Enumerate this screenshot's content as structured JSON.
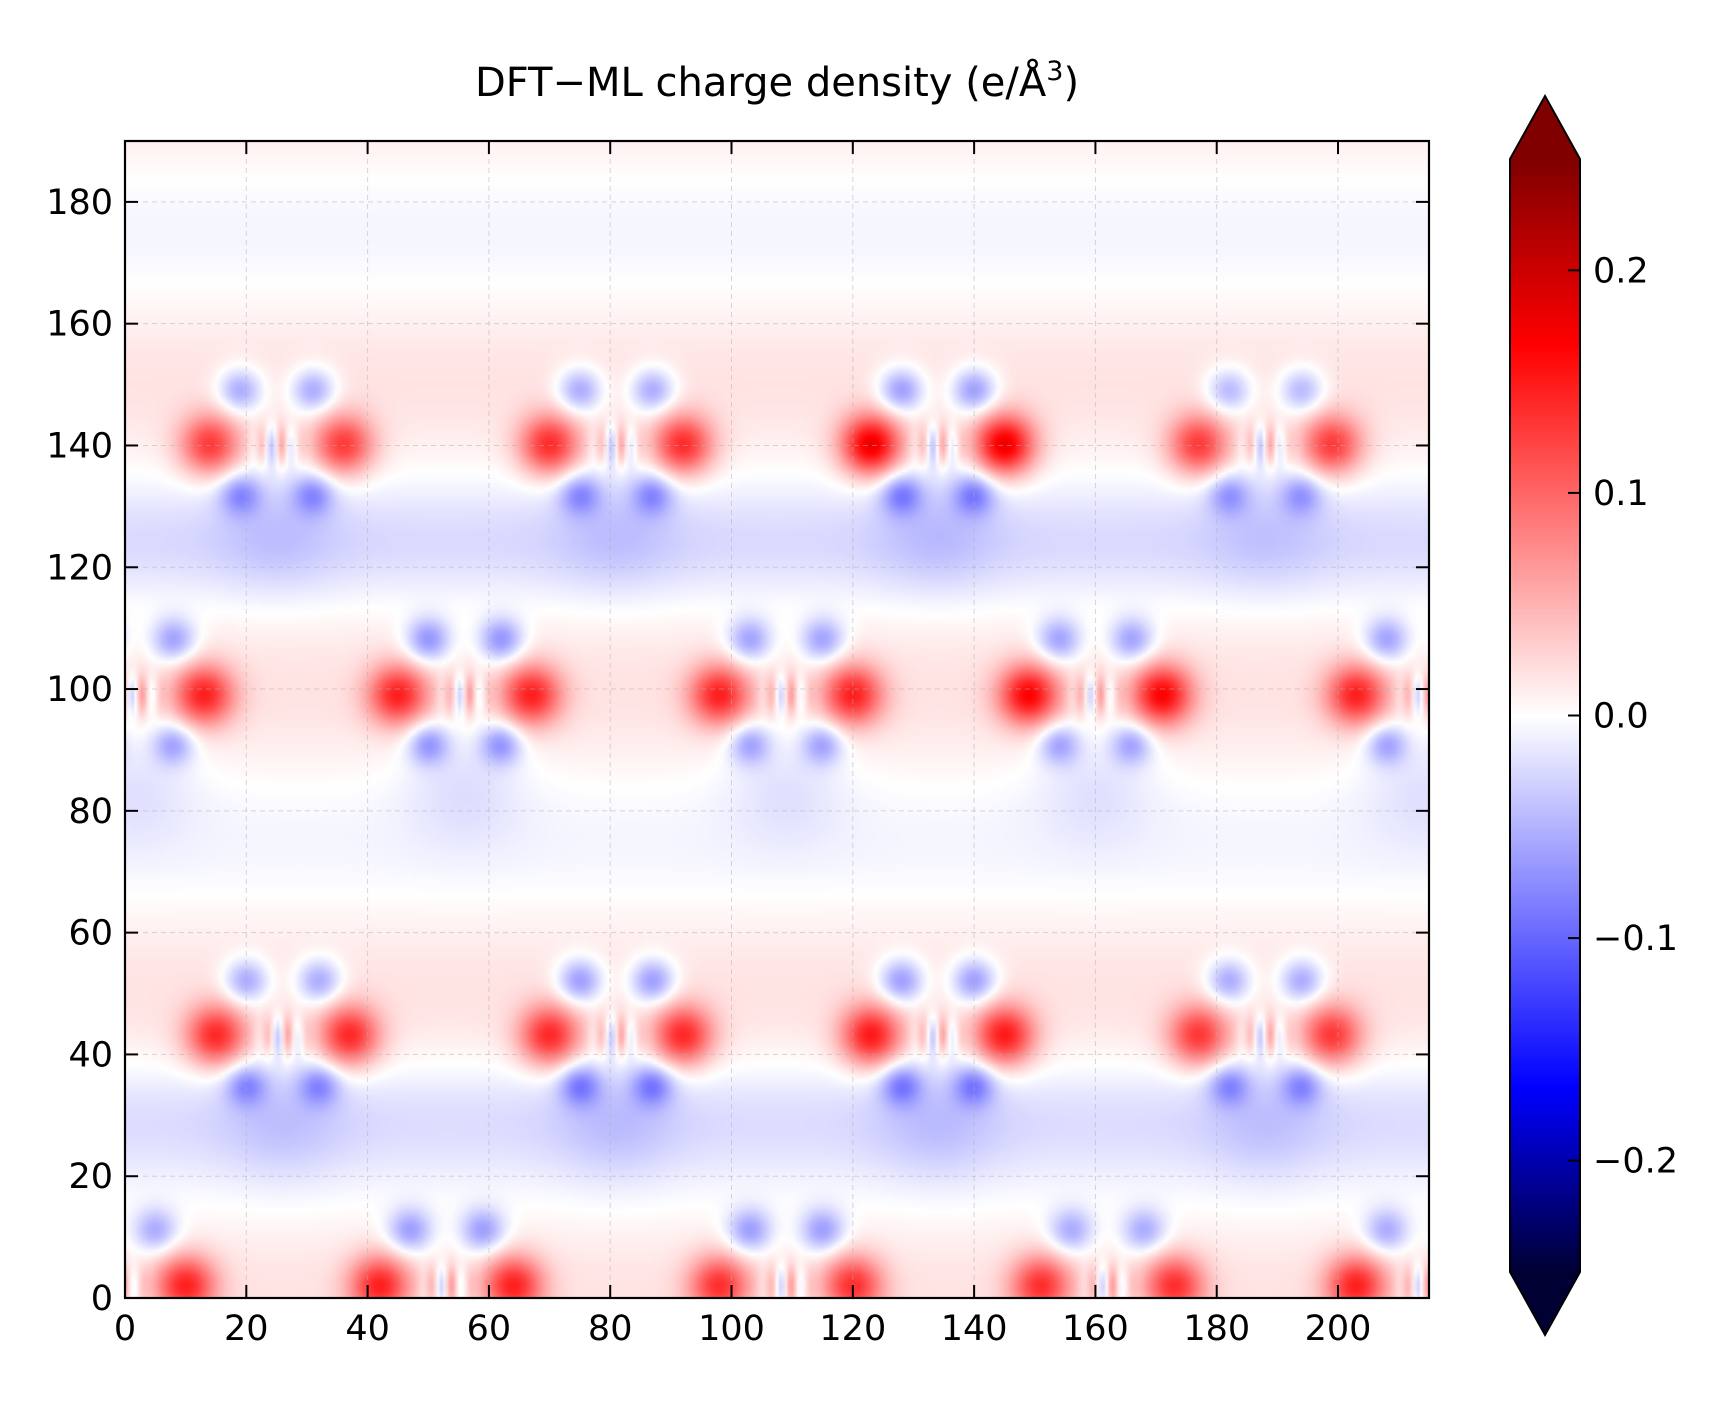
{
  "chart_data": {
    "type": "heatmap",
    "title": "DFT−ML charge density (e/Å³)",
    "title_parts": {
      "main": "DFT−ML charge density (e/Å",
      "superscript": "3",
      "close": ")"
    },
    "xlabel": "",
    "ylabel": "",
    "xlim": [
      0,
      215
    ],
    "ylim": [
      0,
      190
    ],
    "x_ticks": [
      0,
      20,
      40,
      60,
      80,
      100,
      120,
      140,
      160,
      180,
      200
    ],
    "y_ticks": [
      0,
      20,
      40,
      60,
      80,
      100,
      120,
      140,
      160,
      180
    ],
    "grid": true,
    "colormap": "seismic",
    "colormap_stops": [
      {
        "v": -0.25,
        "color": "#000033"
      },
      {
        "v": -0.1667,
        "color": "#0000ff"
      },
      {
        "v": 0.0,
        "color": "#ffffff"
      },
      {
        "v": 0.1667,
        "color": "#ff0000"
      },
      {
        "v": 0.25,
        "color": "#800000"
      }
    ],
    "colorbar": {
      "vmin": -0.25,
      "vmax": 0.25,
      "extend": "both",
      "ticks": [
        -0.2,
        -0.1,
        0.0,
        0.1,
        0.2
      ],
      "tick_labels": [
        "−0.2",
        "−0.1",
        "0.0",
        "0.1",
        "0.2"
      ]
    },
    "features": [
      {
        "name": "motif",
        "x": 25,
        "y": 140,
        "peak_pos": 0.12,
        "peak_neg": -0.08
      },
      {
        "name": "motif",
        "x": 81,
        "y": 140,
        "peak_pos": 0.13,
        "peak_neg": -0.08
      },
      {
        "name": "motif",
        "x": 134,
        "y": 140,
        "peak_pos": 0.17,
        "peak_neg": -0.09
      },
      {
        "name": "motif",
        "x": 188,
        "y": 140,
        "peak_pos": 0.12,
        "peak_neg": -0.07
      },
      {
        "name": "motif",
        "x": 2,
        "y": 99,
        "peak_pos": 0.13,
        "peak_neg": -0.08
      },
      {
        "name": "motif",
        "x": 56,
        "y": 99,
        "peak_pos": 0.13,
        "peak_neg": -0.09
      },
      {
        "name": "motif",
        "x": 109,
        "y": 99,
        "peak_pos": 0.13,
        "peak_neg": -0.08
      },
      {
        "name": "motif",
        "x": 160,
        "y": 99,
        "peak_pos": 0.15,
        "peak_neg": -0.08
      },
      {
        "name": "motif",
        "x": 214,
        "y": 99,
        "peak_pos": 0.13,
        "peak_neg": -0.08
      },
      {
        "name": "motif",
        "x": 26,
        "y": 43,
        "peak_pos": 0.13,
        "peak_neg": -0.08
      },
      {
        "name": "motif",
        "x": 81,
        "y": 43,
        "peak_pos": 0.13,
        "peak_neg": -0.09
      },
      {
        "name": "motif",
        "x": 134,
        "y": 43,
        "peak_pos": 0.14,
        "peak_neg": -0.09
      },
      {
        "name": "motif",
        "x": 188,
        "y": 43,
        "peak_pos": 0.12,
        "peak_neg": -0.08
      },
      {
        "name": "motif",
        "x": -1,
        "y": 2,
        "peak_pos": 0.13,
        "peak_neg": -0.07
      },
      {
        "name": "motif",
        "x": 53,
        "y": 2,
        "peak_pos": 0.13,
        "peak_neg": -0.08
      },
      {
        "name": "motif",
        "x": 109,
        "y": 2,
        "peak_pos": 0.12,
        "peak_neg": -0.08
      },
      {
        "name": "motif",
        "x": 162,
        "y": 2,
        "peak_pos": 0.12,
        "peak_neg": -0.07
      },
      {
        "name": "motif",
        "x": 214,
        "y": 2,
        "peak_pos": 0.13,
        "peak_neg": -0.07
      }
    ]
  }
}
